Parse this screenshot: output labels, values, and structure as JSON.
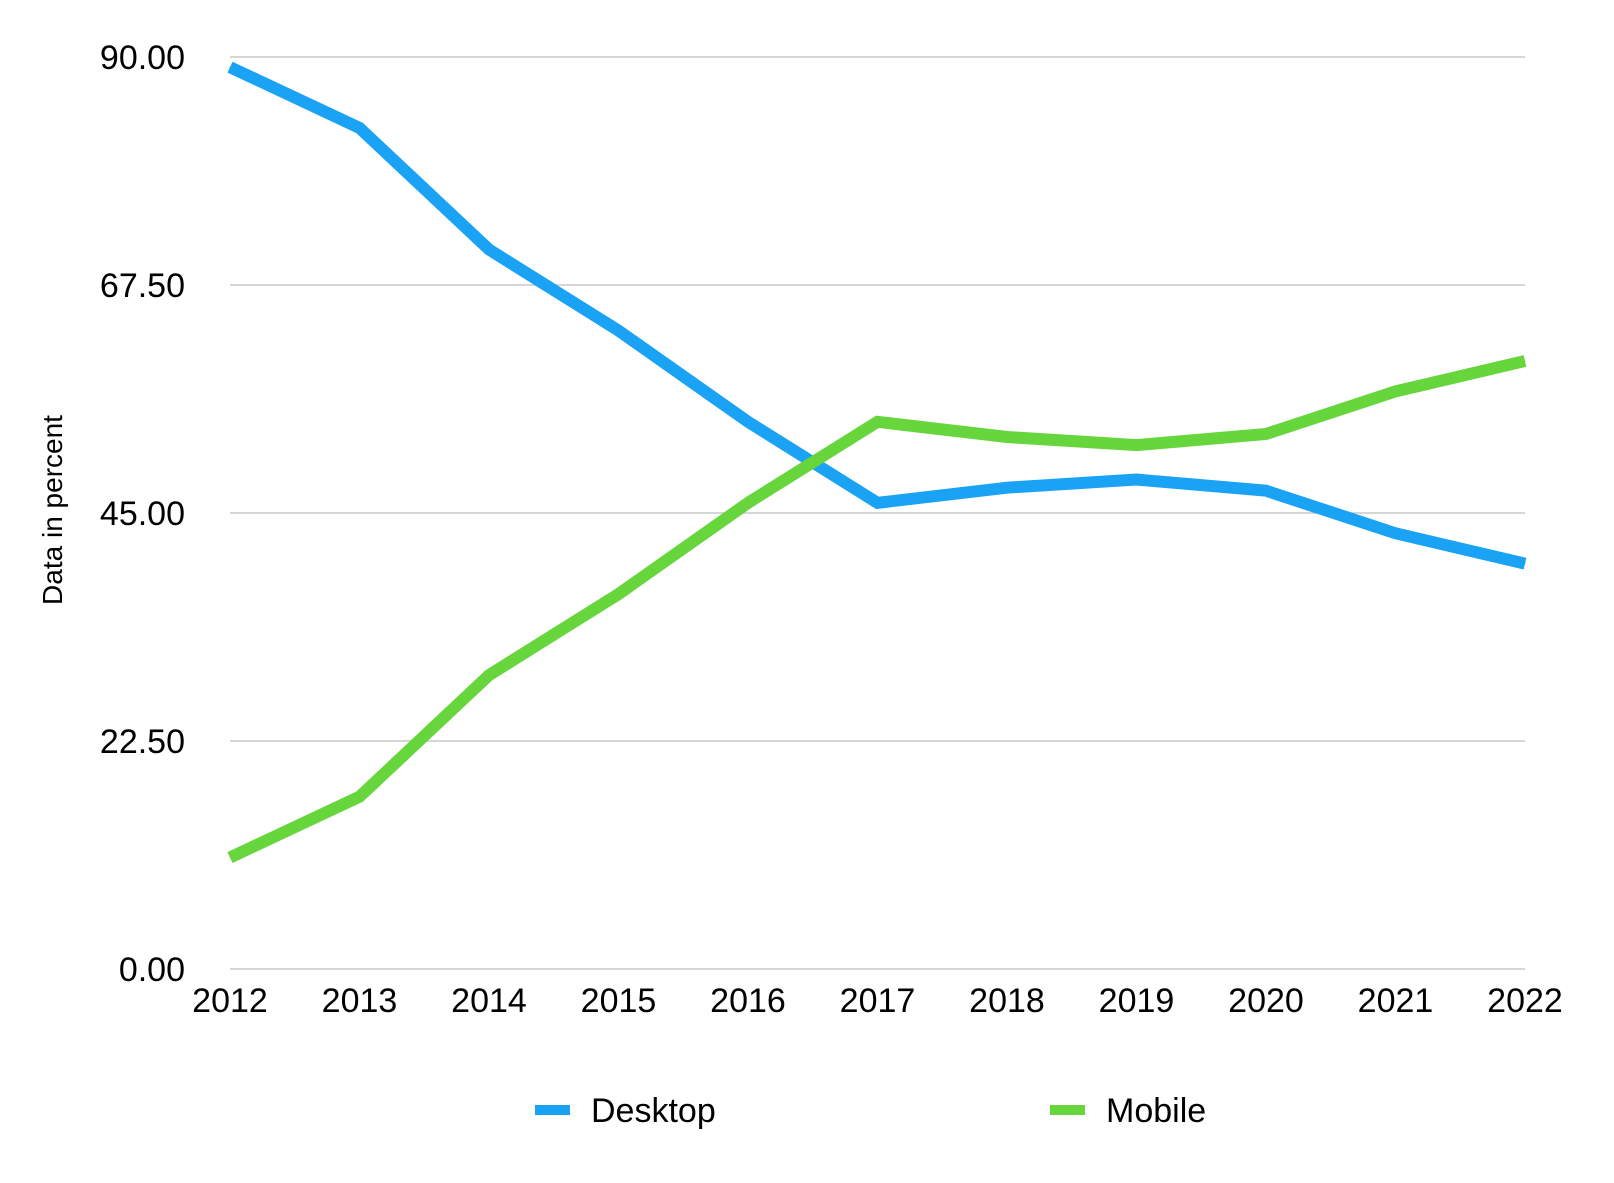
{
  "chart_data": {
    "type": "line",
    "title": "",
    "xlabel": "",
    "ylabel": "Data in percent",
    "categories": [
      "2012",
      "2013",
      "2014",
      "2015",
      "2016",
      "2017",
      "2018",
      "2019",
      "2020",
      "2021",
      "2022"
    ],
    "yticks": [
      "0.00",
      "22.50",
      "45.00",
      "67.50",
      "90.00"
    ],
    "ylim": [
      0,
      90
    ],
    "grid": true,
    "legend_position": "bottom",
    "series": [
      {
        "name": "Desktop",
        "color": "#1aa3f5",
        "values": [
          89,
          83,
          71,
          63,
          54,
          46,
          47.5,
          48.3,
          47.2,
          43,
          40
        ]
      },
      {
        "name": "Mobile",
        "color": "#66d63c",
        "values": [
          11,
          17,
          29,
          37,
          46,
          54,
          52.5,
          51.7,
          52.8,
          57,
          60
        ]
      }
    ]
  }
}
